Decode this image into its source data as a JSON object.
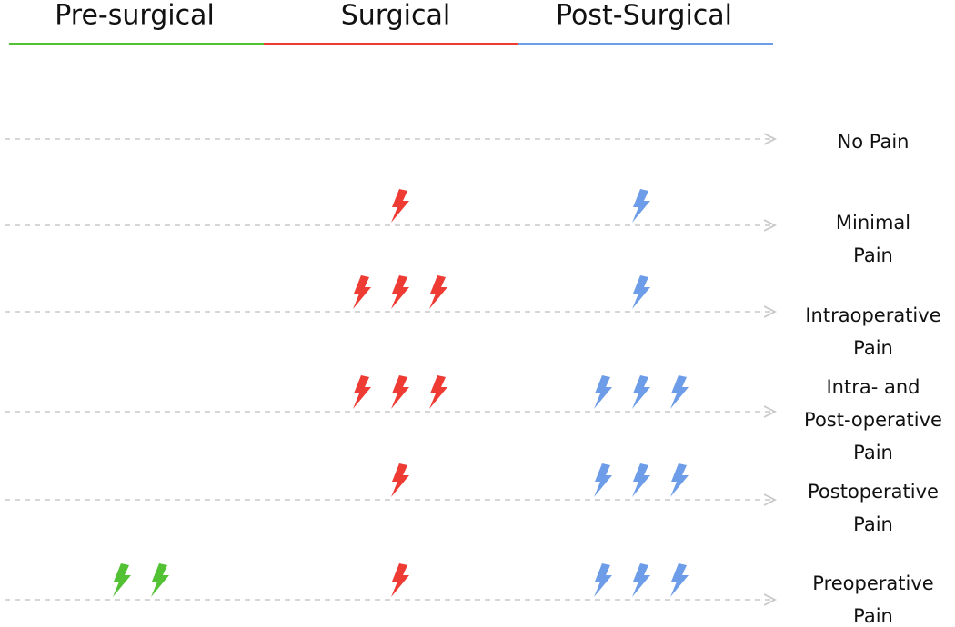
{
  "header": {
    "phases": [
      {
        "label": "Pre-surgical",
        "color": "#52c234"
      },
      {
        "label": "Surgical",
        "color": "#ee3b33"
      },
      {
        "label": "Post-Surgical",
        "color": "#6d9ce8"
      }
    ]
  },
  "rows": [
    {
      "label": [
        "No Pain"
      ],
      "counts": [
        0,
        0,
        0
      ]
    },
    {
      "label": [
        "Minimal",
        "Pain"
      ],
      "counts": [
        0,
        1,
        1
      ]
    },
    {
      "label": [
        "Intraoperative",
        "Pain"
      ],
      "counts": [
        0,
        3,
        1
      ]
    },
    {
      "label": [
        "Intra- and",
        "Post-operative",
        "Pain"
      ],
      "counts": [
        0,
        3,
        3
      ]
    },
    {
      "label": [
        "Postoperative",
        "Pain"
      ],
      "counts": [
        0,
        1,
        3
      ]
    },
    {
      "label": [
        "Preoperative",
        "Pain"
      ],
      "counts": [
        2,
        1,
        3
      ]
    }
  ]
}
